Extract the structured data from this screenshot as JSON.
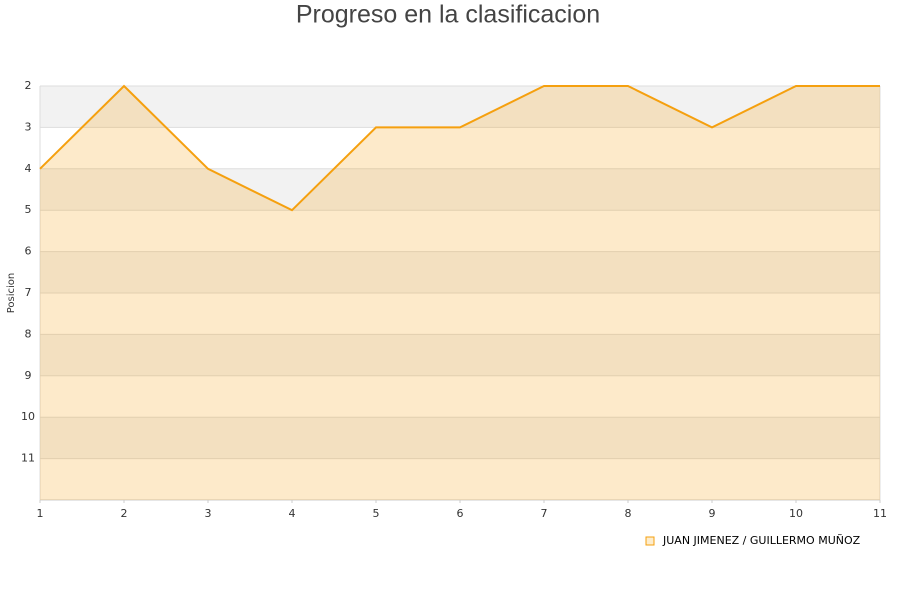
{
  "chart_data": {
    "type": "area",
    "title": "Progreso en la clasificacion",
    "y_label": "Posicion",
    "x": [
      1,
      2,
      3,
      4,
      5,
      6,
      7,
      8,
      9,
      10,
      11
    ],
    "series": [
      {
        "name": "JUAN JIMENEZ / GUILLERMO MUÑOZ",
        "color": "#f5a00f",
        "values": [
          4,
          2,
          4,
          5,
          3,
          3,
          2,
          2,
          3,
          2,
          2
        ]
      }
    ],
    "xlim": [
      1,
      11
    ],
    "xticks": [
      1,
      2,
      3,
      4,
      5,
      6,
      7,
      8,
      9,
      10,
      11
    ],
    "ylim": [
      12,
      2
    ],
    "yticks": [
      2,
      3,
      4,
      5,
      6,
      7,
      8,
      9,
      10,
      11
    ],
    "y_inverted": true,
    "grid": true,
    "legend": "bottom-right"
  }
}
